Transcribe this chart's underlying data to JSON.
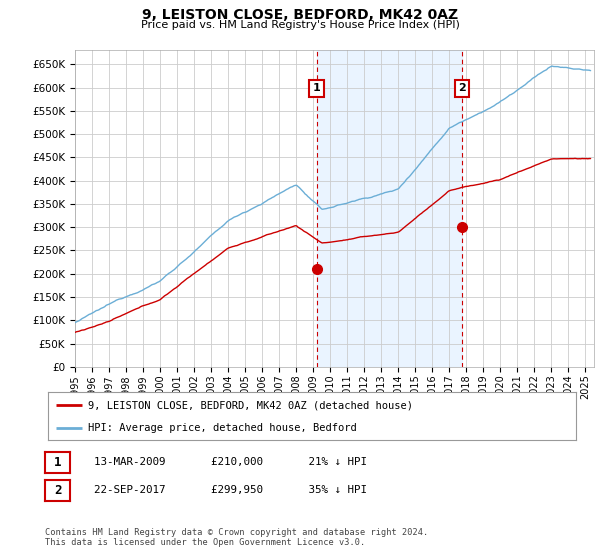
{
  "title": "9, LEISTON CLOSE, BEDFORD, MK42 0AZ",
  "subtitle": "Price paid vs. HM Land Registry's House Price Index (HPI)",
  "ylabel_ticks": [
    "£0",
    "£50K",
    "£100K",
    "£150K",
    "£200K",
    "£250K",
    "£300K",
    "£350K",
    "£400K",
    "£450K",
    "£500K",
    "£550K",
    "£600K",
    "£650K"
  ],
  "ytick_values": [
    0,
    50000,
    100000,
    150000,
    200000,
    250000,
    300000,
    350000,
    400000,
    450000,
    500000,
    550000,
    600000,
    650000
  ],
  "ylim": [
    0,
    680000
  ],
  "xlim_start": 1995.0,
  "xlim_end": 2025.5,
  "hpi_color": "#6baed6",
  "price_color": "#cc0000",
  "vline_color": "#cc0000",
  "sale1_x": 2009.2,
  "sale1_y": 210000,
  "sale2_x": 2017.75,
  "sale2_y": 299950,
  "legend_label_red": "9, LEISTON CLOSE, BEDFORD, MK42 0AZ (detached house)",
  "legend_label_blue": "HPI: Average price, detached house, Bedford",
  "table_row1": [
    "1",
    "13-MAR-2009",
    "£210,000",
    "21% ↓ HPI"
  ],
  "table_row2": [
    "2",
    "22-SEP-2017",
    "£299,950",
    "35% ↓ HPI"
  ],
  "footer": "Contains HM Land Registry data © Crown copyright and database right 2024.\nThis data is licensed under the Open Government Licence v3.0.",
  "bg_color": "#ffffff",
  "grid_color": "#cccccc",
  "shade_color": "#ddeeff",
  "box_edge_color": "#cc0000"
}
